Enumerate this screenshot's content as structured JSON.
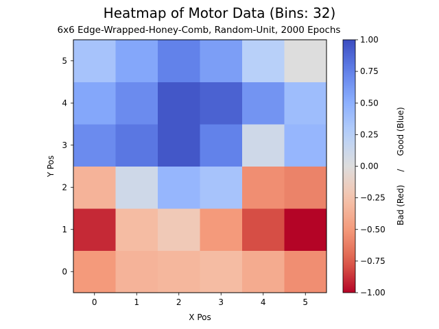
{
  "chart_data": {
    "type": "heatmap",
    "title": "Heatmap of Motor Data (Bins: 32)",
    "subtitle": "6x6 Edge-Wrapped-Honey-Comb, Random-Unit, 2000 Epochs",
    "xlabel": "X Pos",
    "ylabel": "Y Pos",
    "x_ticks": [
      "0",
      "1",
      "2",
      "3",
      "4",
      "5"
    ],
    "y_ticks": [
      "0",
      "1",
      "2",
      "3",
      "4",
      "5"
    ],
    "colorbar": {
      "label": "Bad (Red)     /     Good (Blue)",
      "min": -1.0,
      "max": 1.0,
      "ticks": [
        "1.00",
        "0.75",
        "0.50",
        "0.25",
        "0.00",
        "−0.25",
        "−0.50",
        "−0.75",
        "−1.00"
      ],
      "colormap": "coolwarm (reversed)"
    },
    "values_by_row_y": {
      "y5": [
        0.35,
        0.55,
        0.75,
        0.6,
        0.25,
        0.0
      ],
      "y4": [
        0.55,
        0.7,
        0.95,
        0.9,
        0.65,
        0.4
      ],
      "y3": [
        0.7,
        0.8,
        0.95,
        0.75,
        0.1,
        0.45
      ],
      "y2": [
        -0.35,
        0.1,
        0.45,
        0.35,
        -0.55,
        -0.6
      ],
      "y1": [
        -0.9,
        -0.3,
        -0.2,
        -0.5,
        -0.8,
        -1.0
      ],
      "y0": [
        -0.5,
        -0.35,
        -0.33,
        -0.3,
        -0.4,
        -0.55
      ]
    }
  }
}
